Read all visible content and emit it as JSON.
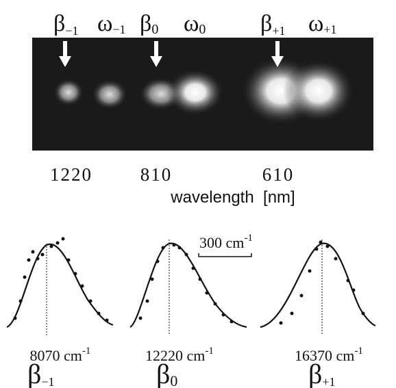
{
  "image_labels": [
    {
      "symbol": "β",
      "sub": "−1"
    },
    {
      "symbol": "ω",
      "sub": "−1"
    },
    {
      "symbol": "β",
      "sub": "0"
    },
    {
      "symbol": "ω",
      "sub": "0"
    },
    {
      "symbol": "β",
      "sub": "+1"
    },
    {
      "symbol": "ω",
      "sub": "+1"
    }
  ],
  "wavelength_ticks": [
    "1220",
    "810",
    "610"
  ],
  "wavelength_label": "wavelength  [nm]",
  "scale_bar": {
    "text": "300 cm",
    "exp": "-1"
  },
  "peaks": [
    {
      "position": "8070 cm",
      "exp": "-1",
      "symbol": "β",
      "sub": "−1"
    },
    {
      "position": "12220 cm",
      "exp": "-1",
      "symbol": "β",
      "sub": "0"
    },
    {
      "position": "16370 cm",
      "exp": "-1",
      "symbol": "β",
      "sub": "+1"
    }
  ]
}
